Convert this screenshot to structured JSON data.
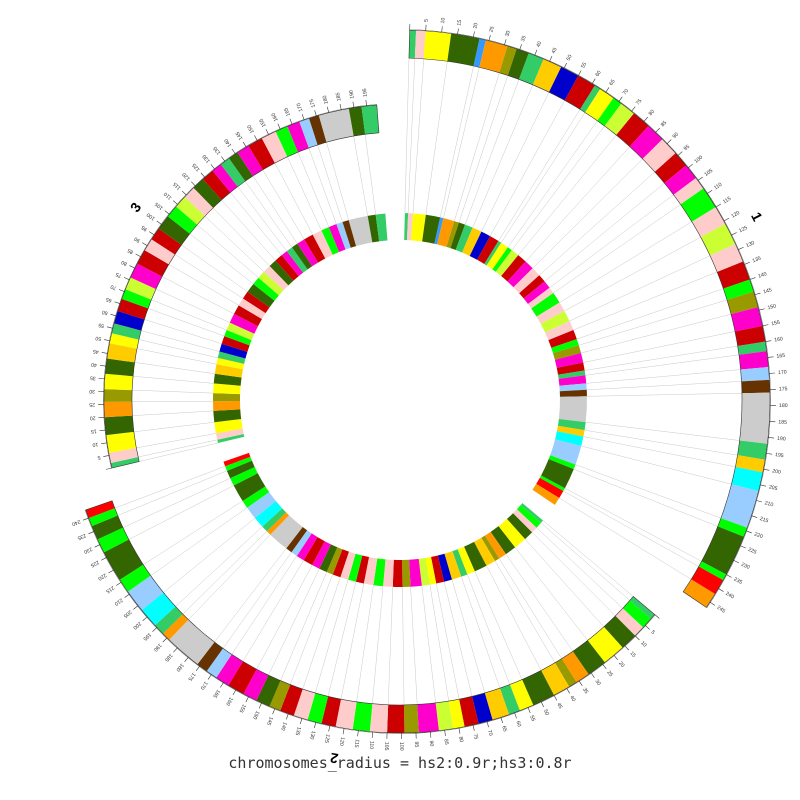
{
  "caption": "chromosomes_radius = hs2:0.9r;hs3:0.8r",
  "chromosomes": [
    {
      "id": "hs1",
      "label": "1",
      "length_mb": 247,
      "tick_step_mb": 5,
      "radius_factor": 1.0
    },
    {
      "id": "hs2",
      "label": "2",
      "length_mb": 243,
      "tick_step_mb": 5,
      "radius_factor": 0.9
    },
    {
      "id": "hs3",
      "label": "3",
      "length_mb": 199,
      "tick_step_mb": 5,
      "radius_factor": 0.8
    }
  ],
  "band_palette": [
    "#33cc66",
    "#ffcccc",
    "#ffff00",
    "#336600",
    "#3399ff",
    "#ff9900",
    "#999900",
    "#cc0000",
    "#0000cc",
    "#ff00cc",
    "#00ff00",
    "#cccccc",
    "#99ccff",
    "#00ffff",
    "#ff0000",
    "#ffcc00",
    "#ccff33",
    "#663300"
  ],
  "bands": {
    "hs1": [
      [
        0,
        2,
        0
      ],
      [
        2,
        5,
        1
      ],
      [
        5,
        13,
        2
      ],
      [
        13,
        22,
        3
      ],
      [
        22,
        24,
        4
      ],
      [
        24,
        31,
        5
      ],
      [
        31,
        34,
        6
      ],
      [
        34,
        38,
        3
      ],
      [
        38,
        43,
        0
      ],
      [
        43,
        49,
        15
      ],
      [
        49,
        55,
        8
      ],
      [
        55,
        61,
        7
      ],
      [
        61,
        63,
        0
      ],
      [
        63,
        68,
        2
      ],
      [
        68,
        71,
        10
      ],
      [
        71,
        76,
        16
      ],
      [
        76,
        82,
        7
      ],
      [
        82,
        88,
        9
      ],
      [
        88,
        94,
        1
      ],
      [
        94,
        99,
        7
      ],
      [
        99,
        104,
        9
      ],
      [
        104,
        108,
        1
      ],
      [
        108,
        115,
        10
      ],
      [
        115,
        121,
        1
      ],
      [
        121,
        128,
        16
      ],
      [
        128,
        134,
        1
      ],
      [
        134,
        140,
        7
      ],
      [
        140,
        144,
        10
      ],
      [
        144,
        149,
        6
      ],
      [
        149,
        155,
        9
      ],
      [
        155,
        160,
        7
      ],
      [
        160,
        163,
        0
      ],
      [
        163,
        168,
        9
      ],
      [
        168,
        172,
        12
      ],
      [
        172,
        176,
        17
      ],
      [
        176,
        192,
        11
      ],
      [
        192,
        197,
        0
      ],
      [
        197,
        201,
        15
      ],
      [
        201,
        207,
        13
      ],
      [
        207,
        219,
        12
      ],
      [
        219,
        222,
        10
      ],
      [
        222,
        235,
        3
      ],
      [
        235,
        237,
        10
      ],
      [
        237,
        242,
        14
      ],
      [
        242,
        247,
        5
      ]
    ],
    "hs2": [
      [
        0,
        2,
        0
      ],
      [
        2,
        6,
        10
      ],
      [
        6,
        10,
        1
      ],
      [
        10,
        16,
        3
      ],
      [
        16,
        24,
        2
      ],
      [
        24,
        31,
        3
      ],
      [
        31,
        36,
        5
      ],
      [
        36,
        39,
        6
      ],
      [
        39,
        45,
        15
      ],
      [
        45,
        53,
        3
      ],
      [
        53,
        58,
        2
      ],
      [
        58,
        62,
        0
      ],
      [
        62,
        68,
        15
      ],
      [
        68,
        73,
        8
      ],
      [
        73,
        78,
        7
      ],
      [
        78,
        82,
        2
      ],
      [
        82,
        87,
        16
      ],
      [
        87,
        94,
        9
      ],
      [
        94,
        99,
        6
      ],
      [
        99,
        105,
        7
      ],
      [
        105,
        111,
        1
      ],
      [
        111,
        117,
        10
      ],
      [
        117,
        123,
        1
      ],
      [
        123,
        128,
        7
      ],
      [
        128,
        133,
        10
      ],
      [
        133,
        138,
        1
      ],
      [
        138,
        143,
        7
      ],
      [
        143,
        147,
        6
      ],
      [
        147,
        152,
        3
      ],
      [
        152,
        157,
        9
      ],
      [
        157,
        163,
        7
      ],
      [
        163,
        168,
        9
      ],
      [
        168,
        172,
        12
      ],
      [
        172,
        176,
        17
      ],
      [
        176,
        189,
        11
      ],
      [
        189,
        192,
        5
      ],
      [
        192,
        196,
        0
      ],
      [
        196,
        203,
        13
      ],
      [
        203,
        211,
        12
      ],
      [
        211,
        216,
        10
      ],
      [
        216,
        227,
        3
      ],
      [
        227,
        232,
        10
      ],
      [
        232,
        237,
        3
      ],
      [
        237,
        240,
        10
      ],
      [
        240,
        243,
        14
      ]
    ],
    "hs3": [
      [
        0,
        2,
        0
      ],
      [
        2,
        6,
        1
      ],
      [
        6,
        13,
        2
      ],
      [
        13,
        20,
        3
      ],
      [
        20,
        26,
        5
      ],
      [
        26,
        31,
        6
      ],
      [
        31,
        37,
        2
      ],
      [
        37,
        43,
        3
      ],
      [
        43,
        49,
        15
      ],
      [
        49,
        53,
        2
      ],
      [
        53,
        57,
        0
      ],
      [
        57,
        62,
        8
      ],
      [
        62,
        67,
        7
      ],
      [
        67,
        71,
        10
      ],
      [
        71,
        76,
        16
      ],
      [
        76,
        82,
        9
      ],
      [
        82,
        88,
        7
      ],
      [
        88,
        93,
        1
      ],
      [
        93,
        98,
        7
      ],
      [
        98,
        104,
        3
      ],
      [
        104,
        109,
        10
      ],
      [
        109,
        114,
        16
      ],
      [
        114,
        119,
        1
      ],
      [
        119,
        124,
        3
      ],
      [
        124,
        129,
        7
      ],
      [
        129,
        133,
        9
      ],
      [
        133,
        137,
        0
      ],
      [
        137,
        141,
        3
      ],
      [
        141,
        146,
        9
      ],
      [
        146,
        152,
        7
      ],
      [
        152,
        158,
        1
      ],
      [
        158,
        163,
        10
      ],
      [
        163,
        168,
        9
      ],
      [
        168,
        172,
        12
      ],
      [
        172,
        176,
        17
      ],
      [
        176,
        188,
        11
      ],
      [
        188,
        193,
        3
      ],
      [
        193,
        199,
        0
      ]
    ]
  }
}
